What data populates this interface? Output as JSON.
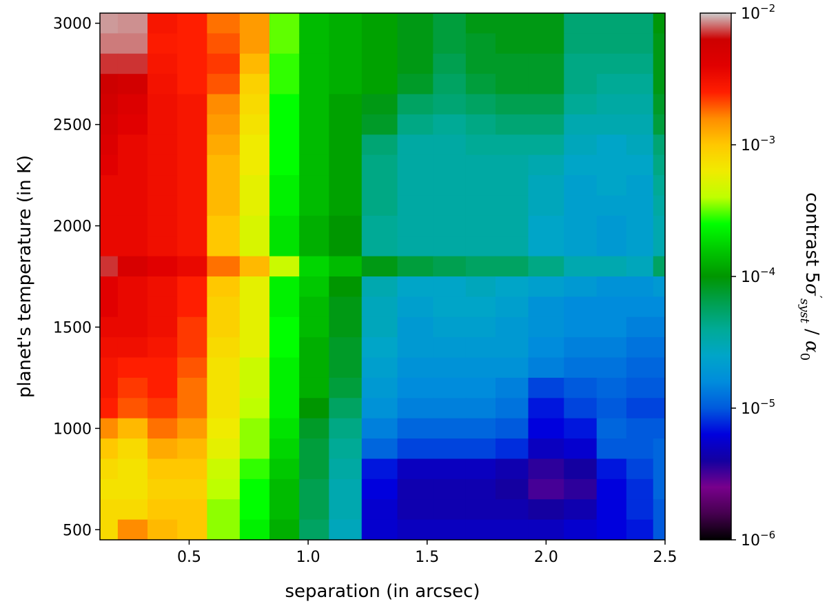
{
  "chart_data": {
    "type": "heatmap",
    "title": "",
    "xlabel": "separation (in arcsec)",
    "ylabel": "planet's temperature (in K)",
    "colorbar_label": "contrast 5σ′ syst / α0",
    "colorbar_label_parts": {
      "main": "contrast 5",
      "sigma": "σ",
      "prime": "′",
      "sub1": "syst",
      "slash": " / ",
      "alpha": "α",
      "sub2": "0"
    },
    "colorbar_scale": "log",
    "colorbar_range": [
      1e-06,
      0.01
    ],
    "colorbar_ticks": [
      {
        "base": "10",
        "exp": "−2",
        "value": 0.01
      },
      {
        "base": "10",
        "exp": "−3",
        "value": 0.001
      },
      {
        "base": "10",
        "exp": "−4",
        "value": 0.0001
      },
      {
        "base": "10",
        "exp": "−5",
        "value": 1e-05
      },
      {
        "base": "10",
        "exp": "−6",
        "value": 1e-06
      }
    ],
    "colormap": "nipy_spectral",
    "xlim": [
      0.125,
      2.5
    ],
    "ylim": [
      450,
      3050
    ],
    "xticks": [
      "0.5",
      "1.0",
      "1.5",
      "2.0",
      "2.5"
    ],
    "yticks": [
      "500",
      "1000",
      "1500",
      "2000",
      "2500",
      "3000"
    ],
    "x": [
      0.15,
      0.25,
      0.4,
      0.5,
      0.65,
      0.775,
      0.9,
      1.025,
      1.15,
      1.3,
      1.45,
      1.6,
      1.725,
      1.85,
      2.0,
      2.15,
      2.275,
      2.4,
      2.5
    ],
    "y": [
      500,
      600,
      700,
      800,
      900,
      1000,
      1100,
      1200,
      1300,
      1400,
      1500,
      1600,
      1700,
      1800,
      1900,
      2000,
      2100,
      2200,
      2300,
      2400,
      2500,
      2600,
      2700,
      2800,
      2900,
      3000
    ],
    "log10_contrast_rows_top_to_bottom": [
      [
        -2.05,
        -2.06,
        -2.55,
        -2.6,
        -2.75,
        -2.85,
        -3.5,
        -3.85,
        -3.9,
        -3.95,
        -4.05,
        -4.15,
        -4.05,
        -4.05,
        -4.05,
        -4.3,
        -4.3,
        -4.3,
        -4.02
      ],
      [
        -2.08,
        -2.08,
        -2.58,
        -2.6,
        -2.7,
        -2.85,
        -3.5,
        -3.85,
        -3.9,
        -3.95,
        -4.05,
        -4.15,
        -4.1,
        -4.05,
        -4.05,
        -4.3,
        -4.3,
        -4.3,
        -4.05
      ],
      [
        -2.15,
        -2.15,
        -2.55,
        -2.6,
        -2.65,
        -2.95,
        -3.55,
        -3.85,
        -3.9,
        -3.95,
        -4.05,
        -4.2,
        -4.1,
        -4.1,
        -4.1,
        -4.35,
        -4.35,
        -4.35,
        -4.05
      ],
      [
        -2.2,
        -2.25,
        -2.52,
        -2.6,
        -2.7,
        -3.05,
        -3.55,
        -3.85,
        -3.9,
        -3.95,
        -4.1,
        -4.25,
        -4.15,
        -4.1,
        -4.1,
        -4.35,
        -4.4,
        -4.4,
        -4.05
      ],
      [
        -2.25,
        -2.35,
        -2.5,
        -2.55,
        -2.8,
        -3.1,
        -3.6,
        -3.85,
        -3.95,
        -4.05,
        -4.25,
        -4.3,
        -4.25,
        -4.2,
        -4.2,
        -4.4,
        -4.45,
        -4.45,
        -4.1
      ],
      [
        -2.3,
        -2.4,
        -2.5,
        -2.55,
        -2.85,
        -3.15,
        -3.6,
        -3.85,
        -3.95,
        -4.1,
        -4.35,
        -4.4,
        -4.35,
        -4.3,
        -4.3,
        -4.5,
        -4.5,
        -4.5,
        -4.15
      ],
      [
        -2.35,
        -2.45,
        -2.5,
        -2.55,
        -2.9,
        -3.2,
        -3.6,
        -3.85,
        -3.95,
        -4.3,
        -4.45,
        -4.45,
        -4.4,
        -4.4,
        -4.4,
        -4.55,
        -4.6,
        -4.55,
        -4.3
      ],
      [
        -2.4,
        -2.45,
        -2.5,
        -2.55,
        -2.95,
        -3.2,
        -3.6,
        -3.85,
        -3.95,
        -4.35,
        -4.45,
        -4.45,
        -4.45,
        -4.45,
        -4.5,
        -4.6,
        -4.6,
        -4.6,
        -4.35
      ],
      [
        -2.45,
        -2.45,
        -2.5,
        -2.55,
        -2.95,
        -3.25,
        -3.65,
        -3.85,
        -3.95,
        -4.35,
        -4.45,
        -4.45,
        -4.45,
        -4.45,
        -4.55,
        -4.65,
        -4.6,
        -4.65,
        -4.4
      ],
      [
        -2.45,
        -2.45,
        -2.5,
        -2.55,
        -2.95,
        -3.25,
        -3.65,
        -3.85,
        -3.95,
        -4.35,
        -4.45,
        -4.45,
        -4.45,
        -4.45,
        -4.55,
        -4.65,
        -4.65,
        -4.65,
        -4.45
      ],
      [
        -2.45,
        -2.45,
        -2.5,
        -2.55,
        -3.0,
        -3.3,
        -3.7,
        -3.9,
        -4.0,
        -4.4,
        -4.45,
        -4.45,
        -4.45,
        -4.45,
        -4.6,
        -4.65,
        -4.7,
        -4.65,
        -4.5
      ],
      [
        -2.45,
        -2.45,
        -2.5,
        -2.55,
        -3.0,
        -3.3,
        -3.7,
        -3.9,
        -4.0,
        -4.4,
        -4.45,
        -4.45,
        -4.45,
        -4.45,
        -4.6,
        -4.65,
        -4.7,
        -4.65,
        -4.5
      ],
      [
        -2.15,
        -2.3,
        -2.4,
        -2.45,
        -2.75,
        -2.95,
        -3.35,
        -3.75,
        -3.85,
        -4.05,
        -4.15,
        -4.2,
        -4.25,
        -4.25,
        -4.35,
        -4.5,
        -4.5,
        -4.55,
        -4.25
      ],
      [
        -2.4,
        -2.45,
        -2.5,
        -2.6,
        -3.0,
        -3.25,
        -3.65,
        -3.8,
        -4.0,
        -4.5,
        -4.6,
        -4.6,
        -4.55,
        -4.6,
        -4.65,
        -4.7,
        -4.75,
        -4.75,
        -4.7
      ],
      [
        -2.4,
        -2.45,
        -2.5,
        -2.6,
        -3.05,
        -3.25,
        -3.65,
        -3.85,
        -4.05,
        -4.55,
        -4.65,
        -4.6,
        -4.6,
        -4.65,
        -4.75,
        -4.8,
        -4.8,
        -4.8,
        -4.8
      ],
      [
        -2.45,
        -2.45,
        -2.5,
        -2.65,
        -3.05,
        -3.25,
        -3.6,
        -3.85,
        -4.05,
        -4.55,
        -4.7,
        -4.65,
        -4.65,
        -4.7,
        -4.75,
        -4.8,
        -4.8,
        -4.85,
        -4.85
      ],
      [
        -2.5,
        -2.5,
        -2.55,
        -2.65,
        -3.1,
        -3.25,
        -3.6,
        -3.9,
        -4.1,
        -4.6,
        -4.7,
        -4.7,
        -4.7,
        -4.7,
        -4.8,
        -4.85,
        -4.85,
        -4.9,
        -4.9
      ],
      [
        -2.55,
        -2.6,
        -2.6,
        -2.7,
        -3.15,
        -3.35,
        -3.65,
        -3.9,
        -4.1,
        -4.65,
        -4.75,
        -4.75,
        -4.75,
        -4.75,
        -4.85,
        -4.9,
        -4.9,
        -4.95,
        -4.95
      ],
      [
        -2.55,
        -2.65,
        -2.6,
        -2.75,
        -3.15,
        -3.35,
        -3.65,
        -3.9,
        -4.15,
        -4.7,
        -4.8,
        -4.8,
        -4.8,
        -4.85,
        -5.05,
        -5.0,
        -4.95,
        -5.0,
        -5.0
      ],
      [
        -2.6,
        -2.7,
        -2.65,
        -2.75,
        -3.15,
        -3.4,
        -3.65,
        -4.0,
        -4.25,
        -4.75,
        -4.85,
        -4.85,
        -4.85,
        -4.9,
        -5.15,
        -5.05,
        -5.0,
        -5.05,
        -5.05
      ],
      [
        -2.8,
        -2.95,
        -2.75,
        -2.85,
        -3.2,
        -3.45,
        -3.7,
        -4.1,
        -4.35,
        -4.85,
        -4.95,
        -4.95,
        -4.95,
        -5.0,
        -5.2,
        -5.15,
        -4.95,
        -5.0,
        -5.0
      ],
      [
        -3.0,
        -3.1,
        -2.9,
        -2.95,
        -3.25,
        -3.45,
        -3.75,
        -4.15,
        -4.4,
        -4.95,
        -5.05,
        -5.05,
        -5.05,
        -5.1,
        -5.3,
        -5.25,
        -5.0,
        -5.0,
        -4.95
      ],
      [
        -3.1,
        -3.15,
        -3.0,
        -3.0,
        -3.35,
        -3.55,
        -3.8,
        -4.15,
        -4.45,
        -5.15,
        -5.3,
        -5.3,
        -5.3,
        -5.35,
        -5.45,
        -5.4,
        -5.15,
        -5.05,
        -4.95
      ],
      [
        -3.15,
        -3.15,
        -3.05,
        -3.05,
        -3.4,
        -3.6,
        -3.85,
        -4.2,
        -4.5,
        -5.2,
        -5.35,
        -5.35,
        -5.35,
        -5.4,
        -5.5,
        -5.45,
        -5.2,
        -5.1,
        -4.95
      ],
      [
        -3.1,
        -3.1,
        -3.0,
        -3.0,
        -3.45,
        -3.6,
        -3.85,
        -4.2,
        -4.5,
        -5.25,
        -5.35,
        -5.35,
        -5.35,
        -5.35,
        -5.4,
        -5.35,
        -5.2,
        -5.1,
        -5.0
      ],
      [
        -3.1,
        -2.8,
        -2.95,
        -3.0,
        -3.45,
        -3.65,
        -3.9,
        -4.25,
        -4.55,
        -5.25,
        -5.3,
        -5.3,
        -5.3,
        -5.3,
        -5.3,
        -5.25,
        -5.2,
        -5.15,
        -5.0
      ]
    ]
  }
}
